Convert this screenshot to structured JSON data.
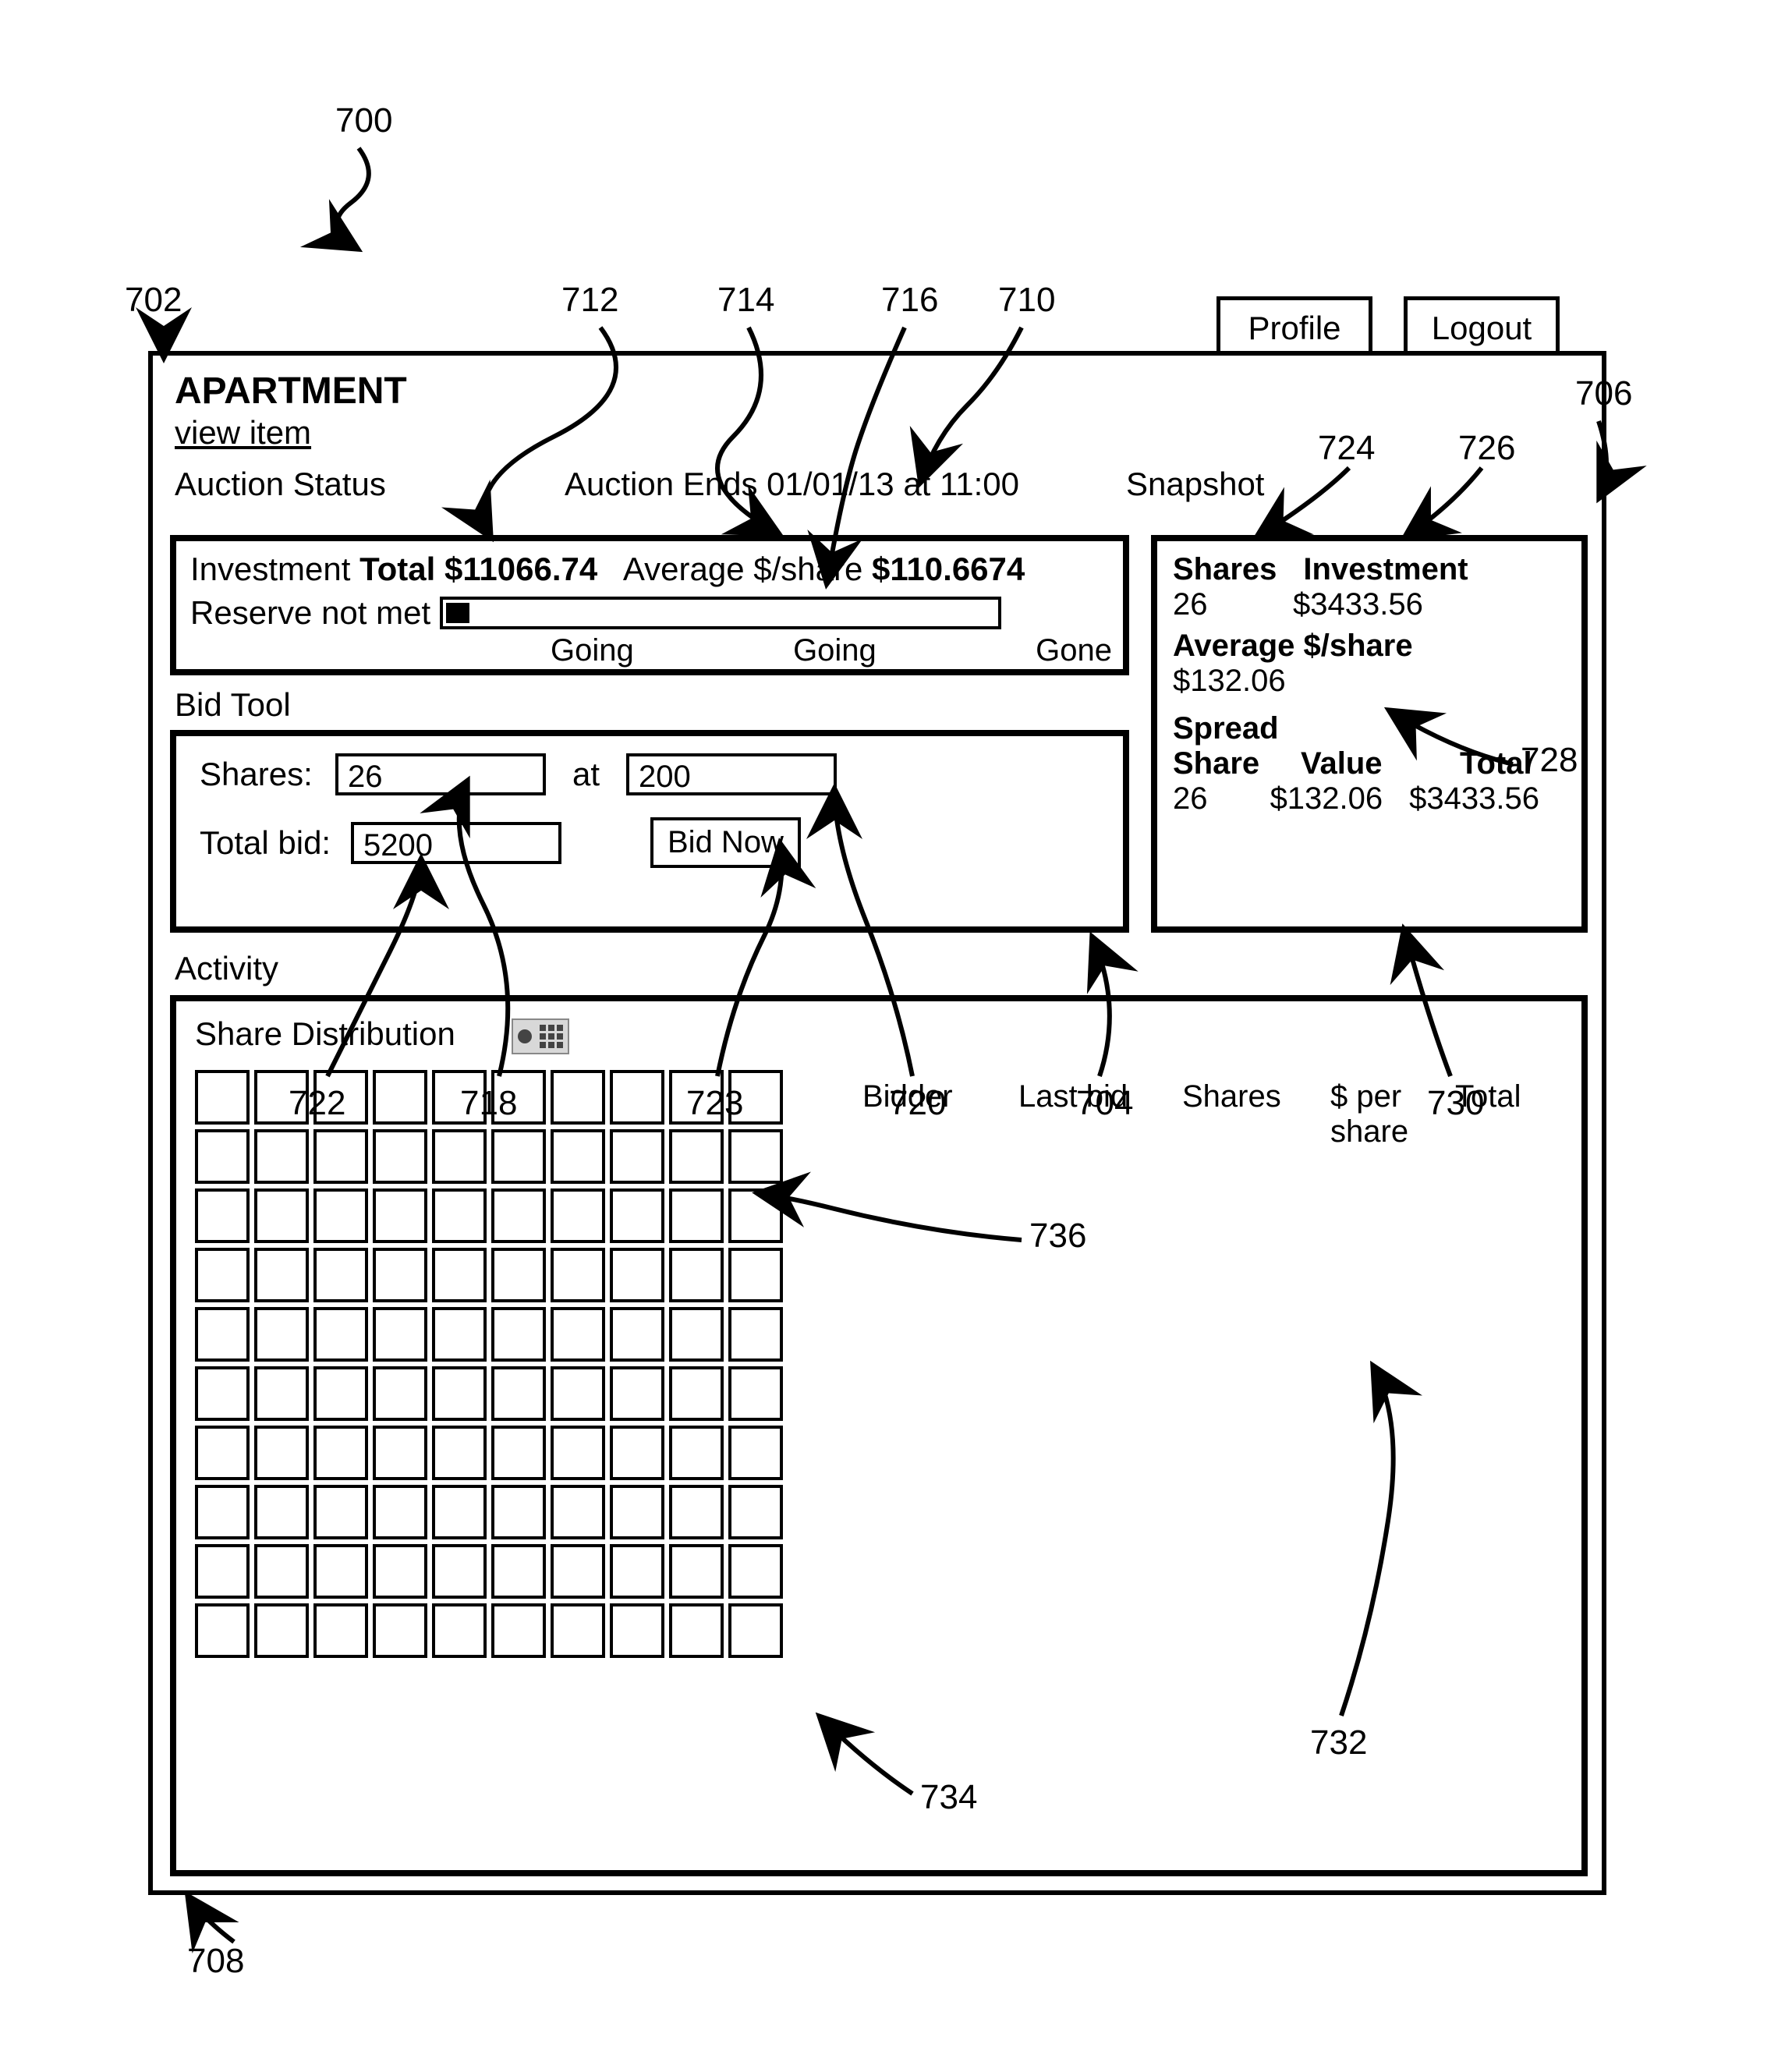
{
  "callouts": {
    "c700": "700",
    "c702": "702",
    "c704": "704",
    "c706": "706",
    "c708": "708",
    "c710": "710",
    "c712": "712",
    "c714": "714",
    "c716": "716",
    "c718": "718",
    "c720": "720",
    "c722": "722",
    "c723": "723",
    "c724": "724",
    "c726": "726",
    "c728": "728",
    "c730": "730",
    "c732": "732",
    "c734": "734",
    "c736": "736"
  },
  "tabs": {
    "profile": "Profile",
    "logout": "Logout"
  },
  "header": {
    "title": "APARTMENT",
    "view_item": "view item",
    "auction_status": "Auction Status",
    "auction_ends": "Auction Ends 01/01/13 at 11:00",
    "snapshot": "Snapshot"
  },
  "auction": {
    "investment_label": "Investment",
    "total_label": "Total",
    "total_value": "$11066.74",
    "avg_label": "Average $/share",
    "avg_value": "$110.6674",
    "reserve_label": "Reserve",
    "reserve_value": "not met",
    "progress_fill_pct": 4,
    "p1": "Going",
    "p2": "Going",
    "p3": "Gone"
  },
  "bidtool": {
    "label": "Bid Tool",
    "shares_label": "Shares:",
    "shares_value": "26",
    "at_label": "at",
    "price_value": "200",
    "total_label": "Total bid:",
    "total_value": "5200",
    "button": "Bid Now"
  },
  "snapshot": {
    "shares_hdr": "Shares",
    "investment_hdr": "Investment",
    "shares_val": "26",
    "investment_val": "$3433.56",
    "avg_hdr": "Average $/share",
    "avg_val": "$132.06",
    "spread_hdr": "Spread",
    "col_share": "Share",
    "col_value": "Value",
    "col_total": "Total",
    "row_share": "26",
    "row_value": "$132.06",
    "row_total": "$3433.56"
  },
  "activity": {
    "label": "Activity",
    "share_dist": "Share Distribution",
    "grid_cols": 10,
    "grid_rows": 10,
    "hdr_bidder": "Bidder",
    "hdr_lastbid": "Last bid",
    "hdr_shares": "Shares",
    "hdr_per": "$ per share",
    "hdr_total": "Total"
  },
  "colors": {
    "border": "#000000",
    "bg": "#ffffff",
    "toggle_bg": "#d8d8d8"
  }
}
